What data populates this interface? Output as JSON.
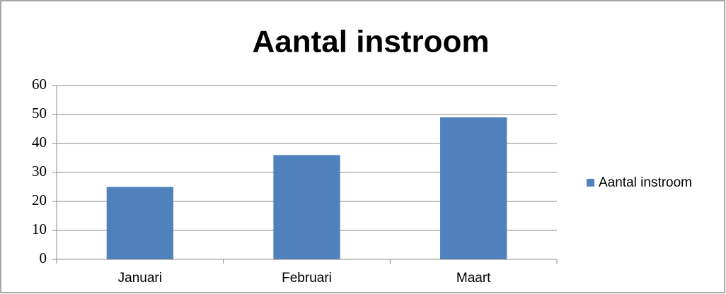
{
  "chart_data": {
    "type": "bar",
    "title": "Aantal instroom",
    "categories": [
      "Januari",
      "Februari",
      "Maart"
    ],
    "series": [
      {
        "name": "Aantal instroom",
        "color": "#4f81bd",
        "values": [
          25,
          36,
          49
        ]
      }
    ],
    "ylim": [
      0,
      60
    ],
    "yticks": [
      0,
      10,
      20,
      30,
      40,
      50,
      60
    ],
    "grid": true,
    "legend": "right"
  }
}
